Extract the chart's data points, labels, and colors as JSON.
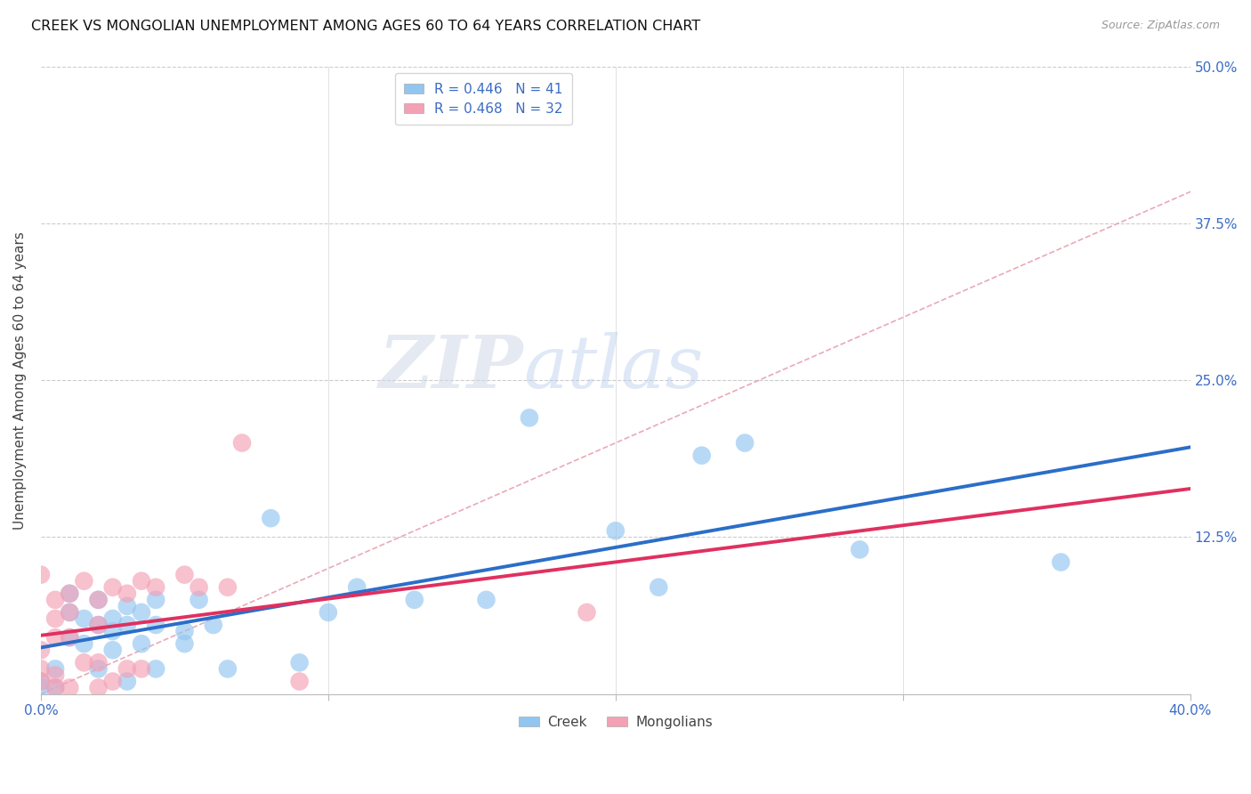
{
  "title": "CREEK VS MONGOLIAN UNEMPLOYMENT AMONG AGES 60 TO 64 YEARS CORRELATION CHART",
  "source": "Source: ZipAtlas.com",
  "ylabel": "Unemployment Among Ages 60 to 64 years",
  "xlim": [
    0.0,
    0.4
  ],
  "ylim": [
    0.0,
    0.5
  ],
  "creek_color": "#92C5F0",
  "mongolian_color": "#F4A0B5",
  "creek_line_color": "#2B6EC8",
  "mongolian_line_color": "#E03060",
  "diagonal_color": "#E8A0B0",
  "creek_R": 0.446,
  "creek_N": 41,
  "mongolian_R": 0.468,
  "mongolian_N": 32,
  "watermark": "ZIPatlas",
  "creek_scatter_x": [
    0.0,
    0.0,
    0.005,
    0.005,
    0.01,
    0.01,
    0.01,
    0.015,
    0.015,
    0.02,
    0.02,
    0.02,
    0.025,
    0.025,
    0.025,
    0.03,
    0.03,
    0.03,
    0.035,
    0.035,
    0.04,
    0.04,
    0.04,
    0.05,
    0.05,
    0.055,
    0.06,
    0.065,
    0.08,
    0.09,
    0.1,
    0.11,
    0.13,
    0.155,
    0.17,
    0.2,
    0.215,
    0.23,
    0.245,
    0.285,
    0.355
  ],
  "creek_scatter_y": [
    0.01,
    0.005,
    0.02,
    0.005,
    0.08,
    0.065,
    0.045,
    0.06,
    0.04,
    0.075,
    0.055,
    0.02,
    0.05,
    0.06,
    0.035,
    0.07,
    0.055,
    0.01,
    0.065,
    0.04,
    0.075,
    0.055,
    0.02,
    0.05,
    0.04,
    0.075,
    0.055,
    0.02,
    0.14,
    0.025,
    0.065,
    0.085,
    0.075,
    0.075,
    0.22,
    0.13,
    0.085,
    0.19,
    0.2,
    0.115,
    0.105
  ],
  "mongolian_scatter_x": [
    0.0,
    0.0,
    0.0,
    0.0,
    0.005,
    0.005,
    0.005,
    0.005,
    0.005,
    0.01,
    0.01,
    0.01,
    0.01,
    0.015,
    0.015,
    0.02,
    0.02,
    0.02,
    0.02,
    0.025,
    0.025,
    0.03,
    0.03,
    0.035,
    0.035,
    0.04,
    0.05,
    0.055,
    0.065,
    0.07,
    0.09,
    0.19
  ],
  "mongolian_scatter_y": [
    0.01,
    0.02,
    0.035,
    0.095,
    0.075,
    0.06,
    0.045,
    0.015,
    0.005,
    0.08,
    0.065,
    0.045,
    0.005,
    0.09,
    0.025,
    0.075,
    0.055,
    0.025,
    0.005,
    0.085,
    0.01,
    0.08,
    0.02,
    0.09,
    0.02,
    0.085,
    0.095,
    0.085,
    0.085,
    0.2,
    0.01,
    0.065
  ],
  "creek_line_x": [
    0.0,
    0.4
  ],
  "creek_line_y": [
    0.02,
    0.235
  ],
  "mongolian_line_x": [
    0.0,
    0.1
  ],
  "mongolian_line_y": [
    0.005,
    0.135
  ]
}
